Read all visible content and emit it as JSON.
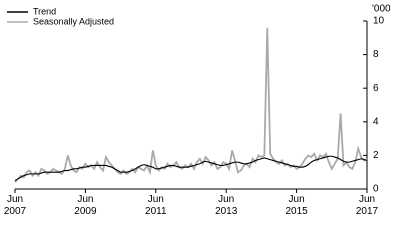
{
  "chart_data": {
    "type": "line",
    "y_unit": "'000",
    "x": [
      "2007-06",
      "2007-07",
      "2007-08",
      "2007-09",
      "2007-10",
      "2007-11",
      "2007-12",
      "2008-01",
      "2008-02",
      "2008-03",
      "2008-04",
      "2008-05",
      "2008-06",
      "2008-07",
      "2008-08",
      "2008-09",
      "2008-10",
      "2008-11",
      "2008-12",
      "2009-01",
      "2009-02",
      "2009-03",
      "2009-04",
      "2009-05",
      "2009-06",
      "2009-07",
      "2009-08",
      "2009-09",
      "2009-10",
      "2009-11",
      "2009-12",
      "2010-01",
      "2010-02",
      "2010-03",
      "2010-04",
      "2010-05",
      "2010-06",
      "2010-07",
      "2010-08",
      "2010-09",
      "2010-10",
      "2010-11",
      "2010-12",
      "2011-01",
      "2011-02",
      "2011-03",
      "2011-04",
      "2011-05",
      "2011-06",
      "2011-07",
      "2011-08",
      "2011-09",
      "2011-10",
      "2011-11",
      "2011-12",
      "2012-01",
      "2012-02",
      "2012-03",
      "2012-04",
      "2012-05",
      "2012-06",
      "2012-07",
      "2012-08",
      "2012-09",
      "2012-10",
      "2012-11",
      "2012-12",
      "2013-01",
      "2013-02",
      "2013-03",
      "2013-04",
      "2013-05",
      "2013-06",
      "2013-07",
      "2013-08",
      "2013-09",
      "2013-10",
      "2013-11",
      "2013-12",
      "2014-01",
      "2014-02",
      "2014-03",
      "2014-04",
      "2014-05",
      "2014-06",
      "2014-07",
      "2014-08",
      "2014-09",
      "2014-10",
      "2014-11",
      "2014-12",
      "2015-01",
      "2015-02",
      "2015-03",
      "2015-04",
      "2015-05",
      "2015-06",
      "2015-07",
      "2015-08",
      "2015-09",
      "2015-10",
      "2015-11",
      "2015-12",
      "2016-01",
      "2016-02",
      "2016-03",
      "2016-04",
      "2016-05",
      "2016-06",
      "2016-07",
      "2016-08",
      "2016-09",
      "2016-10",
      "2016-11",
      "2016-12",
      "2017-01",
      "2017-02",
      "2017-03",
      "2017-04",
      "2017-05",
      "2017-06"
    ],
    "series": [
      {
        "name": "Seasonally Adjusted",
        "color": "#aaaaaa",
        "values": [
          0.4,
          0.6,
          0.8,
          0.7,
          1.0,
          1.1,
          0.8,
          1.0,
          0.8,
          1.2,
          1.1,
          0.9,
          1.0,
          1.2,
          1.1,
          1.0,
          0.9,
          1.2,
          2.0,
          1.4,
          1.1,
          1.0,
          1.3,
          1.2,
          1.5,
          1.3,
          1.4,
          1.2,
          1.6,
          1.3,
          1.1,
          1.9,
          1.6,
          1.4,
          1.2,
          1.0,
          0.9,
          1.1,
          0.9,
          1.0,
          1.2,
          1.0,
          1.3,
          1.2,
          1.1,
          1.4,
          1.0,
          2.3,
          1.4,
          1.1,
          1.3,
          1.2,
          1.5,
          1.3,
          1.4,
          1.6,
          1.3,
          1.2,
          1.4,
          1.3,
          1.5,
          1.2,
          1.6,
          1.8,
          1.5,
          1.9,
          1.7,
          1.4,
          1.6,
          1.2,
          1.3,
          1.6,
          1.5,
          1.2,
          2.3,
          1.7,
          1.0,
          1.1,
          1.4,
          1.5,
          1.3,
          1.8,
          1.6,
          2.0,
          1.9,
          2.0,
          9.6,
          2.1,
          1.8,
          1.6,
          1.5,
          1.7,
          1.4,
          1.5,
          1.3,
          1.4,
          1.2,
          1.3,
          1.5,
          1.8,
          2.0,
          1.9,
          2.1,
          1.7,
          2.0,
          1.9,
          2.1,
          1.6,
          1.2,
          1.5,
          1.8,
          4.5,
          1.4,
          1.6,
          1.3,
          1.2,
          1.6,
          2.4,
          1.9,
          1.7,
          1.8
        ]
      },
      {
        "name": "Trend",
        "color": "#000000",
        "values": [
          0.5,
          0.6,
          0.7,
          0.8,
          0.85,
          0.9,
          0.9,
          0.9,
          0.9,
          0.95,
          1.0,
          1.0,
          1.0,
          1.0,
          1.0,
          1.0,
          1.05,
          1.1,
          1.1,
          1.15,
          1.2,
          1.2,
          1.25,
          1.3,
          1.3,
          1.35,
          1.4,
          1.4,
          1.4,
          1.4,
          1.4,
          1.4,
          1.35,
          1.3,
          1.2,
          1.1,
          1.0,
          1.0,
          1.0,
          1.05,
          1.1,
          1.2,
          1.3,
          1.4,
          1.45,
          1.4,
          1.35,
          1.3,
          1.2,
          1.2,
          1.25,
          1.3,
          1.35,
          1.4,
          1.4,
          1.35,
          1.3,
          1.3,
          1.3,
          1.3,
          1.35,
          1.4,
          1.45,
          1.5,
          1.6,
          1.65,
          1.6,
          1.55,
          1.5,
          1.45,
          1.4,
          1.4,
          1.45,
          1.5,
          1.55,
          1.6,
          1.6,
          1.55,
          1.5,
          1.5,
          1.55,
          1.6,
          1.7,
          1.75,
          1.8,
          1.85,
          1.8,
          1.75,
          1.7,
          1.65,
          1.6,
          1.55,
          1.5,
          1.45,
          1.4,
          1.35,
          1.35,
          1.3,
          1.3,
          1.35,
          1.45,
          1.6,
          1.7,
          1.75,
          1.8,
          1.85,
          1.9,
          1.95,
          1.95,
          1.9,
          1.85,
          1.75,
          1.65,
          1.6,
          1.6,
          1.65,
          1.7,
          1.75,
          1.8,
          1.75,
          1.7
        ]
      }
    ],
    "legend_order": [
      "Trend",
      "Seasonally Adjusted"
    ],
    "legend": "top-left",
    "ylim": [
      0,
      10
    ],
    "yticks": [
      0,
      2,
      4,
      6,
      8,
      10
    ],
    "xticks": [
      {
        "value": "2007-06",
        "label": "Jun\n2007"
      },
      {
        "value": "2009-06",
        "label": "Jun\n2009"
      },
      {
        "value": "2011-06",
        "label": "Jun\n2011"
      },
      {
        "value": "2013-06",
        "label": "Jun\n2013"
      },
      {
        "value": "2015-06",
        "label": "Jun\n2015"
      },
      {
        "value": "2017-06",
        "label": "Jun\n2017"
      }
    ]
  }
}
